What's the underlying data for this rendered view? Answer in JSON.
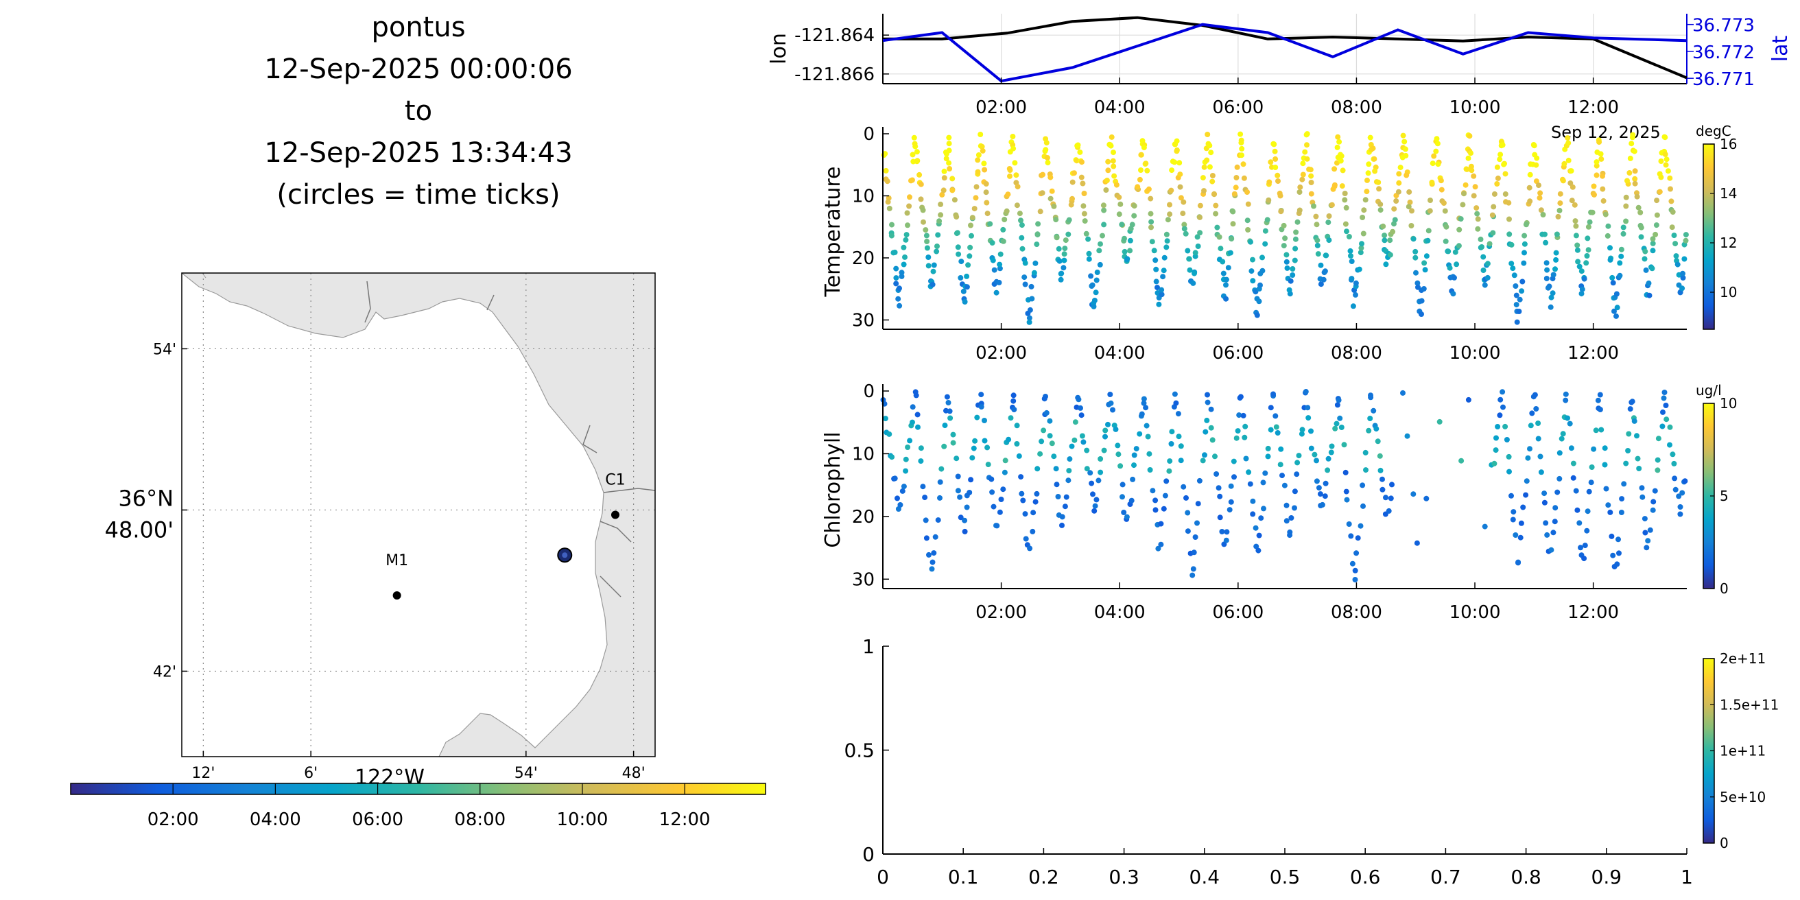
{
  "header": {
    "platform": "pontus",
    "start": "12-Sep-2025 00:00:06",
    "to": "to",
    "end": "12-Sep-2025 13:34:43",
    "note": "(circles = time ticks)"
  },
  "colors": {
    "parula": [
      "#352a87",
      "#0f5cdd",
      "#1481d6",
      "#06a4ca",
      "#2eb7a4",
      "#87bf77",
      "#d1bb59",
      "#fec832",
      "#f9fb0e"
    ],
    "land": "#e6e6e6",
    "lon_line": "#000000",
    "lat_line": "#0000dd"
  },
  "map": {
    "stations": [
      {
        "name": "M1",
        "lon": -122.02,
        "lat": 36.747
      },
      {
        "name": "C1",
        "lon": -121.817,
        "lat": 36.797
      }
    ],
    "track_marker": {
      "lon": -121.864,
      "lat": 36.772
    },
    "lat_ticks": [
      "54'",
      "36°N\n48.00'",
      "42'"
    ],
    "lon_ticks": [
      "12'",
      "6'",
      "54'",
      "48'"
    ],
    "lon_label": "122°W",
    "colorbar_ticks": [
      "02:00",
      "04:00",
      "06:00",
      "08:00",
      "10:00",
      "12:00"
    ]
  },
  "chart_data": [
    {
      "id": "position",
      "type": "line",
      "xlabel": "",
      "x_ticks": [
        "02:00",
        "04:00",
        "06:00",
        "08:00",
        "10:00",
        "12:00"
      ],
      "x_range_hours": [
        0.0,
        13.58
      ],
      "y_left": {
        "label": "lon",
        "ticks": [
          "-121.864",
          "-121.866"
        ],
        "ylim": [
          -121.8665,
          -121.8629
        ]
      },
      "y_right": {
        "label": "lat",
        "ticks": [
          "36.773",
          "36.772",
          "36.771"
        ],
        "ylim": [
          36.7708,
          36.7734
        ]
      },
      "date_label": "Sep 12, 2025",
      "series": [
        {
          "name": "lon",
          "axis": "left",
          "x": [
            0.0,
            1.0,
            2.1,
            3.2,
            4.3,
            5.4,
            6.5,
            7.6,
            8.7,
            9.8,
            10.9,
            12.0,
            13.58
          ],
          "y": [
            -121.8642,
            -121.8642,
            -121.8639,
            -121.8633,
            -121.8631,
            -121.8635,
            -121.8642,
            -121.8641,
            -121.8642,
            -121.8643,
            -121.8641,
            -121.8642,
            -121.8662
          ]
        },
        {
          "name": "lat",
          "axis": "right",
          "x": [
            0.0,
            1.0,
            2.0,
            3.2,
            4.3,
            5.4,
            6.5,
            7.6,
            8.7,
            9.8,
            10.9,
            12.0,
            13.58
          ],
          "y": [
            36.7724,
            36.7727,
            36.7709,
            36.7714,
            36.7722,
            36.773,
            36.7727,
            36.7718,
            36.7728,
            36.7719,
            36.7727,
            36.7725,
            36.7724
          ]
        }
      ]
    },
    {
      "id": "temperature",
      "type": "scatter",
      "ylabel": "Temperature",
      "y_ticks": [
        "0",
        "10",
        "20",
        "30"
      ],
      "ylim": [
        0,
        31.5
      ],
      "x_ticks": [
        "02:00",
        "04:00",
        "06:00",
        "08:00",
        "10:00",
        "12:00"
      ],
      "x_range_hours": [
        0.0,
        13.58
      ],
      "color_units": "degC",
      "clim": [
        8.5,
        16
      ],
      "colorbar_ticks": [
        "16",
        "14",
        "12",
        "10"
      ],
      "profile_times_hours": [
        0.0,
        0.55,
        1.1,
        1.65,
        2.2,
        2.75,
        3.3,
        3.85,
        4.4,
        4.95,
        5.5,
        6.05,
        6.6,
        7.15,
        7.7,
        8.25,
        8.8,
        9.35,
        9.9,
        10.45,
        11.0,
        11.55,
        12.1,
        12.65,
        13.2
      ],
      "description": "yo-yo profiles from 0 to ~30 m; warm (~15-16 degC) near surface, ~10-11 degC at depth"
    },
    {
      "id": "chlorophyll",
      "type": "scatter",
      "ylabel": "Chlorophyll",
      "y_ticks": [
        "0",
        "10",
        "20",
        "30"
      ],
      "ylim": [
        0,
        31.5
      ],
      "x_ticks": [
        "02:00",
        "04:00",
        "06:00",
        "08:00",
        "10:00",
        "12:00"
      ],
      "x_range_hours": [
        0.0,
        13.58
      ],
      "color_units": "ug/l",
      "clim": [
        0,
        10
      ],
      "colorbar_ticks": [
        "10",
        "5",
        "0"
      ],
      "gap_hours": [
        8.6,
        10.3
      ],
      "description": "low values (~0.5-3 ug/l) with slightly higher values near 5-12 m"
    },
    {
      "id": "empty",
      "type": "scatter",
      "x_ticks": [
        "0",
        "0.1",
        "0.2",
        "0.3",
        "0.4",
        "0.5",
        "0.6",
        "0.7",
        "0.8",
        "0.9",
        "1"
      ],
      "y_ticks": [
        "1",
        "0.5",
        "0"
      ],
      "xlim": [
        0,
        1
      ],
      "ylim": [
        0,
        1
      ],
      "colorbar_ticks": [
        "2e+11",
        "1.5e+11",
        "1e+11",
        "5e+10",
        "0"
      ],
      "clim": [
        0,
        200000000000.0
      ]
    }
  ]
}
